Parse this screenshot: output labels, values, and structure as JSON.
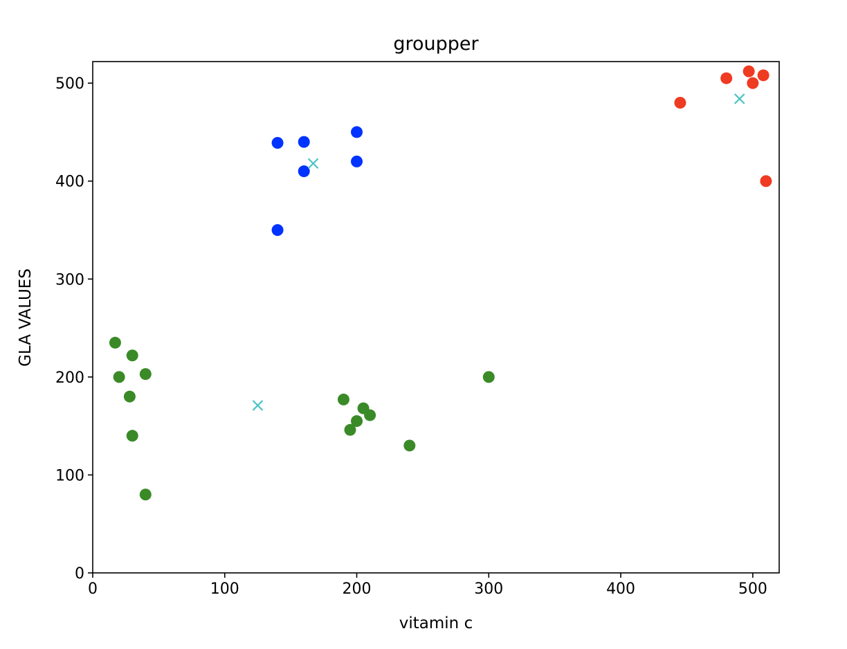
{
  "chart_data": {
    "type": "scatter",
    "title": "groupper",
    "xlabel": "vitamin c",
    "ylabel": "GLA VALUES",
    "xlim": [
      0,
      520
    ],
    "ylim": [
      0,
      522
    ],
    "xticks": [
      0,
      100,
      200,
      300,
      400,
      500
    ],
    "yticks": [
      0,
      100,
      200,
      300,
      400,
      500
    ],
    "xtick_labels": [
      "0",
      "100",
      "200",
      "300",
      "400",
      "500"
    ],
    "ytick_labels": [
      "0",
      "100",
      "200",
      "300",
      "400",
      "500"
    ],
    "grid": false,
    "legend": "none",
    "series": [
      {
        "color": "#3a8a27",
        "marker": "circle",
        "points": [
          [
            17,
            235
          ],
          [
            20,
            200
          ],
          [
            28,
            180
          ],
          [
            30,
            222
          ],
          [
            30,
            140
          ],
          [
            40,
            203
          ],
          [
            40,
            80
          ],
          [
            190,
            177
          ],
          [
            195,
            146
          ],
          [
            200,
            155
          ],
          [
            205,
            168
          ],
          [
            210,
            161
          ],
          [
            240,
            130
          ],
          [
            300,
            200
          ]
        ]
      },
      {
        "color": "#0033ff",
        "marker": "circle",
        "points": [
          [
            140,
            439
          ],
          [
            140,
            350
          ],
          [
            160,
            440
          ],
          [
            160,
            410
          ],
          [
            200,
            450
          ],
          [
            200,
            420
          ]
        ]
      },
      {
        "color": "#ee3b21",
        "marker": "circle",
        "points": [
          [
            445,
            480
          ],
          [
            480,
            505
          ],
          [
            497,
            512
          ],
          [
            500,
            500
          ],
          [
            508,
            508
          ],
          [
            510,
            400
          ]
        ]
      },
      {
        "color": "#4cc4c4",
        "marker": "x",
        "points": [
          [
            125,
            171
          ],
          [
            167,
            418
          ],
          [
            490,
            484
          ]
        ]
      }
    ]
  }
}
